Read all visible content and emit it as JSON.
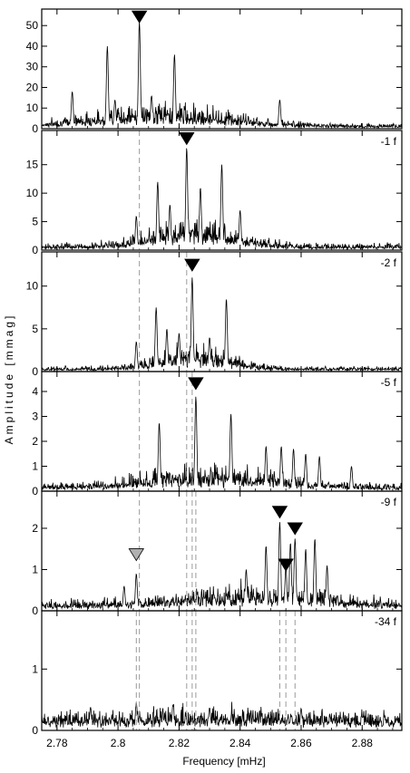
{
  "chart_data": {
    "type": "line",
    "xlabel": "Frequency [mHz]",
    "ylabel": "Amplitude [mmag]",
    "xlim": [
      2.775,
      2.893
    ],
    "x_ticks": [
      "2.78",
      "2.8",
      "2.82",
      "2.84",
      "2.86",
      "2.88"
    ],
    "x_tick_values": [
      2.78,
      2.8,
      2.82,
      2.84,
      2.86,
      2.88
    ],
    "noise_seed": 7,
    "colors": {
      "trace": "#000000",
      "marker": "#000000",
      "marker_prewhitened": "#b0b0b0",
      "dashed": "#9a9a9a"
    },
    "panels": [
      {
        "label": "",
        "ylim": [
          0,
          58
        ],
        "y_ticks": [
          0,
          10,
          20,
          30,
          40,
          50
        ],
        "noise_peak": 9,
        "noise_center": 2.815,
        "noise_width": 0.03,
        "noise_floor": 2,
        "peaks": [
          [
            2.7965,
            40
          ],
          [
            2.807,
            52
          ],
          [
            2.8185,
            36
          ],
          [
            2.785,
            18
          ],
          [
            2.853,
            14
          ],
          [
            2.799,
            14
          ],
          [
            2.811,
            16
          ]
        ],
        "markers": [
          {
            "x": 2.807,
            "y": 54,
            "style": "filled"
          }
        ],
        "dashed_lines": []
      },
      {
        "label": "-1 f",
        "ylim": [
          0,
          21
        ],
        "y_ticks": [
          0,
          5,
          10,
          15
        ],
        "noise_peak": 4,
        "noise_center": 2.825,
        "noise_width": 0.018,
        "noise_floor": 1,
        "peaks": [
          [
            2.8225,
            18
          ],
          [
            2.834,
            15
          ],
          [
            2.813,
            12
          ],
          [
            2.827,
            11
          ],
          [
            2.817,
            8
          ],
          [
            2.84,
            7
          ],
          [
            2.806,
            6
          ]
        ],
        "markers": [
          {
            "x": 2.8225,
            "y": 19.5,
            "style": "filled"
          }
        ],
        "dashed_lines": [
          2.807
        ]
      },
      {
        "label": "-2 f",
        "ylim": [
          0,
          14
        ],
        "y_ticks": [
          0,
          5,
          10
        ],
        "noise_peak": 2.2,
        "noise_center": 2.825,
        "noise_width": 0.016,
        "noise_floor": 0.5,
        "peaks": [
          [
            2.8243,
            11
          ],
          [
            2.8355,
            8.5
          ],
          [
            2.8125,
            7.5
          ],
          [
            2.82,
            4.5
          ],
          [
            2.816,
            5
          ],
          [
            2.83,
            4
          ],
          [
            2.806,
            3.5
          ]
        ],
        "markers": [
          {
            "x": 2.8243,
            "y": 12.4,
            "style": "filled"
          }
        ],
        "dashed_lines": [
          2.807,
          2.8225
        ]
      },
      {
        "label": "-5 f",
        "ylim": [
          0,
          4.8
        ],
        "y_ticks": [
          0,
          1,
          2,
          3,
          4
        ],
        "noise_peak": 0.7,
        "noise_center": 2.83,
        "noise_width": 0.028,
        "noise_floor": 0.25,
        "peaks": [
          [
            2.8255,
            3.8
          ],
          [
            2.837,
            3.1
          ],
          [
            2.8135,
            2.75
          ],
          [
            2.8485,
            1.8
          ],
          [
            2.8535,
            1.8
          ],
          [
            2.8575,
            1.7
          ],
          [
            2.8615,
            1.5
          ],
          [
            2.866,
            1.4
          ],
          [
            2.8765,
            1.0
          ]
        ],
        "markers": [
          {
            "x": 2.8255,
            "y": 4.3,
            "style": "filled"
          }
        ],
        "dashed_lines": [
          2.807,
          2.8225,
          2.8243
        ]
      },
      {
        "label": "-9 f",
        "ylim": [
          0,
          2.9
        ],
        "y_ticks": [
          0,
          1,
          2
        ],
        "noise_peak": 0.35,
        "noise_center": 2.845,
        "noise_width": 0.03,
        "noise_floor": 0.22,
        "peaks": [
          [
            2.853,
            2.15
          ],
          [
            2.858,
            1.75
          ],
          [
            2.855,
            1.05
          ],
          [
            2.8645,
            1.75
          ],
          [
            2.8485,
            1.58
          ],
          [
            2.8565,
            1.65
          ],
          [
            2.8615,
            1.5
          ],
          [
            2.8685,
            1.1
          ],
          [
            2.842,
            1.0
          ],
          [
            2.806,
            0.9
          ],
          [
            2.802,
            0.6
          ]
        ],
        "markers": [
          {
            "x": 2.853,
            "y": 2.38,
            "style": "filled"
          },
          {
            "x": 2.858,
            "y": 1.98,
            "style": "filled"
          },
          {
            "x": 2.855,
            "y": 1.1,
            "style": "filled"
          },
          {
            "x": 2.806,
            "y": 1.35,
            "style": "prewhitened"
          }
        ],
        "dashed_lines": [
          2.807,
          2.8225,
          2.8243,
          2.8255
        ]
      },
      {
        "label": "-34 f",
        "ylim": [
          0,
          1.95
        ],
        "y_ticks": [
          0,
          1
        ],
        "noise_peak": 0.08,
        "noise_center": 2.83,
        "noise_width": 0.04,
        "noise_floor": 0.24,
        "peaks": [
          [
            2.806,
            0.45
          ],
          [
            2.818,
            0.42
          ],
          [
            2.791,
            0.38
          ],
          [
            2.86,
            0.36
          ],
          [
            2.83,
            0.37
          ]
        ],
        "markers": [],
        "dashed_lines": [
          2.806,
          2.807,
          2.8225,
          2.8243,
          2.8255,
          2.853,
          2.855,
          2.858
        ]
      }
    ]
  }
}
